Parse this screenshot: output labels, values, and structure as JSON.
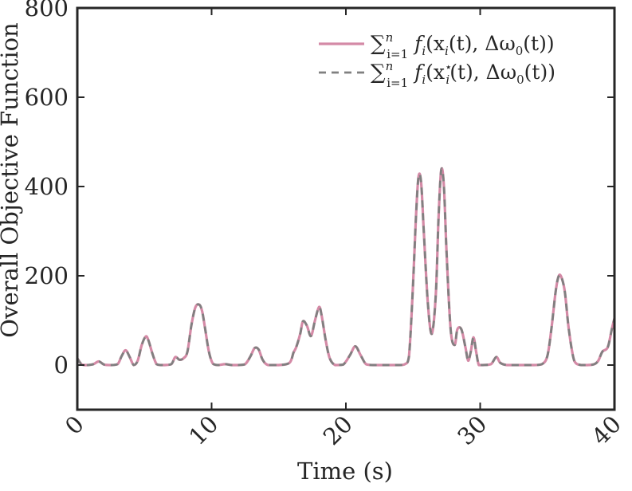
{
  "chart_data": {
    "type": "line",
    "xlabel": "Time (s)",
    "ylabel": "Overall Objective Function",
    "xlim": [
      0,
      40
    ],
    "ylim": [
      -100,
      800
    ],
    "xticks": [
      0,
      10,
      20,
      30,
      40
    ],
    "yticks": [
      0,
      200,
      400,
      600,
      800
    ],
    "grid": false,
    "legend_position": "top-right",
    "series": [
      {
        "name": "∑_{i=1}^{n} f_i(x_i(t), Δω_0(t))",
        "style": "solid",
        "color": "#d48aa6",
        "x": [
          0,
          0.15,
          0.3,
          0.5,
          0.8,
          1.2,
          1.6,
          2.0,
          2.5,
          3.0,
          3.3,
          3.6,
          3.9,
          4.2,
          4.5,
          4.8,
          5.1,
          5.3,
          5.6,
          5.9,
          6.2,
          6.5,
          7.0,
          7.3,
          7.6,
          7.9,
          8.2,
          8.5,
          8.8,
          9.1,
          9.3,
          9.5,
          9.8,
          10.1,
          10.5,
          11.0,
          11.5,
          12.0,
          12.5,
          12.9,
          13.2,
          13.5,
          13.8,
          14.2,
          15.0,
          15.8,
          16.1,
          16.3,
          16.6,
          16.8,
          17.1,
          17.4,
          17.7,
          18.0,
          18.2,
          18.5,
          18.8,
          19.2,
          19.8,
          20.3,
          20.7,
          21.1,
          21.5,
          22.0,
          23.0,
          24.0,
          24.4,
          24.7,
          25.0,
          25.2,
          25.4,
          25.6,
          25.8,
          26.1,
          26.4,
          26.7,
          26.9,
          27.1,
          27.3,
          27.5,
          27.8,
          28.1,
          28.3,
          28.6,
          28.9,
          29.1,
          29.3,
          29.5,
          29.7,
          29.9,
          30.2,
          30.8,
          31.2,
          31.5,
          32.0,
          33.0,
          34.0,
          34.6,
          35.0,
          35.3,
          35.6,
          35.8,
          36.0,
          36.3,
          36.6,
          37.0,
          37.5,
          38.0,
          38.5,
          38.8,
          39.1,
          39.5,
          39.8,
          40.0
        ],
        "values": [
          15,
          8,
          2,
          0,
          0,
          2,
          8,
          1,
          0,
          2,
          20,
          33,
          18,
          0,
          10,
          45,
          64,
          55,
          25,
          2,
          0,
          0,
          2,
          18,
          12,
          15,
          30,
          90,
          130,
          135,
          120,
          85,
          30,
          3,
          0,
          2,
          0,
          0,
          2,
          20,
          38,
          35,
          12,
          0,
          0,
          5,
          28,
          40,
          70,
          98,
          88,
          65,
          100,
          130,
          110,
          55,
          15,
          0,
          1,
          22,
          42,
          22,
          2,
          0,
          0,
          0,
          2,
          20,
          180,
          320,
          420,
          410,
          300,
          140,
          70,
          160,
          330,
          437,
          400,
          250,
          80,
          45,
          80,
          80,
          40,
          10,
          30,
          62,
          30,
          0,
          0,
          2,
          18,
          5,
          0,
          0,
          0,
          2,
          20,
          80,
          160,
          195,
          200,
          165,
          80,
          10,
          0,
          0,
          2,
          10,
          30,
          40,
          80,
          105
        ]
      },
      {
        "name": "∑_{i=1}^{n} f_i(x_i^⋆(t), Δω_0(t))",
        "style": "dashed",
        "color": "#808080",
        "x": [
          0,
          0.15,
          0.3,
          0.5,
          0.8,
          1.2,
          1.6,
          2.0,
          2.5,
          3.0,
          3.3,
          3.6,
          3.9,
          4.2,
          4.5,
          4.8,
          5.1,
          5.3,
          5.6,
          5.9,
          6.2,
          6.5,
          7.0,
          7.3,
          7.6,
          7.9,
          8.2,
          8.5,
          8.8,
          9.1,
          9.3,
          9.5,
          9.8,
          10.1,
          10.5,
          11.0,
          11.5,
          12.0,
          12.5,
          12.9,
          13.2,
          13.5,
          13.8,
          14.2,
          15.0,
          15.8,
          16.1,
          16.3,
          16.6,
          16.8,
          17.1,
          17.4,
          17.7,
          18.0,
          18.2,
          18.5,
          18.8,
          19.2,
          19.8,
          20.3,
          20.7,
          21.1,
          21.5,
          22.0,
          23.0,
          24.0,
          24.4,
          24.7,
          25.0,
          25.2,
          25.4,
          25.6,
          25.8,
          26.1,
          26.4,
          26.7,
          26.9,
          27.1,
          27.3,
          27.5,
          27.8,
          28.1,
          28.3,
          28.6,
          28.9,
          29.1,
          29.3,
          29.5,
          29.7,
          29.9,
          30.2,
          30.8,
          31.2,
          31.5,
          32.0,
          33.0,
          34.0,
          34.6,
          35.0,
          35.3,
          35.6,
          35.8,
          36.0,
          36.3,
          36.6,
          37.0,
          37.5,
          38.0,
          38.5,
          38.8,
          39.1,
          39.5,
          39.8,
          40.0
        ],
        "values": [
          15,
          8,
          2,
          0,
          0,
          2,
          8,
          1,
          0,
          2,
          20,
          33,
          18,
          0,
          10,
          45,
          64,
          55,
          25,
          2,
          0,
          0,
          2,
          18,
          12,
          15,
          30,
          90,
          130,
          135,
          120,
          85,
          30,
          3,
          0,
          2,
          0,
          0,
          2,
          20,
          38,
          35,
          12,
          0,
          0,
          5,
          28,
          40,
          70,
          98,
          88,
          65,
          100,
          130,
          110,
          55,
          15,
          0,
          1,
          22,
          42,
          22,
          2,
          0,
          0,
          0,
          2,
          20,
          180,
          320,
          420,
          410,
          300,
          140,
          70,
          160,
          330,
          437,
          400,
          250,
          80,
          45,
          80,
          80,
          40,
          10,
          30,
          62,
          30,
          0,
          0,
          2,
          18,
          5,
          0,
          0,
          0,
          2,
          20,
          80,
          160,
          195,
          200,
          165,
          80,
          10,
          0,
          0,
          2,
          10,
          30,
          40,
          80,
          105
        ]
      }
    ]
  }
}
